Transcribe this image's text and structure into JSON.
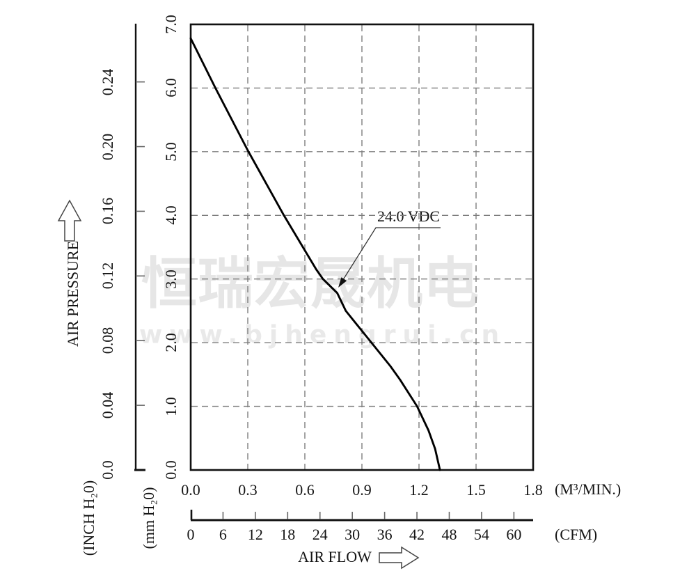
{
  "watermark": {
    "company_cn": "恒瑞宏晟机电",
    "website": "www.bjhengrui.cn",
    "cn_color": "#e6e6e6",
    "url_color": "#e9e9e9"
  },
  "labels": {
    "air_pressure": "AIR PRESSURE",
    "air_flow": "AIR FLOW",
    "inch_unit": "(INCH H₂0)",
    "mm_unit": "(mm H₂0)",
    "m3_unit": "(M³/MIN.)",
    "cfm_unit": "(CFM)"
  },
  "colors": {
    "curve": "#000000",
    "grid": "#7d7d7d",
    "axis": "#111111",
    "tick": "#666666"
  },
  "chart_data": {
    "type": "line",
    "title": "",
    "annotation": {
      "text": "24.0 VDC"
    },
    "series": [
      {
        "name": "24.0 VDC",
        "x_unit": "M3/MIN",
        "y_unit": "mm H20",
        "points": [
          [
            0.0,
            6.78
          ],
          [
            0.13,
            6.0
          ],
          [
            0.3,
            5.02
          ],
          [
            0.49,
            4.0
          ],
          [
            0.6,
            3.45
          ],
          [
            0.66,
            3.15
          ],
          [
            0.695,
            3.0
          ],
          [
            0.77,
            2.78
          ],
          [
            0.815,
            2.5
          ],
          [
            0.95,
            2.0
          ],
          [
            1.05,
            1.63
          ],
          [
            1.1,
            1.42
          ],
          [
            1.19,
            1.0
          ],
          [
            1.25,
            0.62
          ],
          [
            1.285,
            0.33
          ],
          [
            1.31,
            0.0
          ]
        ]
      }
    ],
    "x_axis_primary": {
      "unit": "(M³/MIN.)",
      "range": [
        0,
        1.8
      ],
      "tick_values": [
        0,
        0.3,
        0.6,
        0.9,
        1.2,
        1.5,
        1.8
      ],
      "tick_labels": [
        "0.0",
        "0.3",
        "0.6",
        "0.9",
        "1.2",
        "1.5",
        "1.8"
      ]
    },
    "x_axis_secondary": {
      "unit": "(CFM)",
      "range": [
        0,
        63.57
      ],
      "tick_values": [
        0,
        6,
        12,
        18,
        24,
        30,
        36,
        42,
        48,
        54,
        60
      ],
      "tick_labels": [
        "0",
        "6",
        "12",
        "18",
        "24",
        "30",
        "36",
        "42",
        "48",
        "54",
        "60"
      ]
    },
    "y_axis_primary": {
      "unit": "(mm H₂0)",
      "range": [
        0,
        7
      ],
      "tick_values": [
        0,
        1,
        2,
        3,
        4,
        5,
        6,
        7
      ],
      "tick_labels": [
        "0.0",
        "1.0",
        "2.0",
        "3.0",
        "4.0",
        "5.0",
        "6.0",
        "7.0"
      ]
    },
    "y_axis_secondary": {
      "unit": "(INCH H₂0)",
      "range": [
        0,
        0.2756
      ],
      "tick_values": [
        0,
        0.04,
        0.08,
        0.12,
        0.16,
        0.2,
        0.24
      ],
      "tick_labels": [
        "0.0",
        "0.04",
        "0.08",
        "0.12",
        "0.16",
        "0.20",
        "0.24"
      ]
    },
    "grid": {
      "h_values_mm": [
        1,
        2,
        3,
        4,
        5,
        6
      ],
      "v_values_m3": [
        0.3,
        0.6,
        0.9,
        1.2,
        1.5
      ],
      "style": "dashed"
    },
    "legend_position": "none"
  }
}
